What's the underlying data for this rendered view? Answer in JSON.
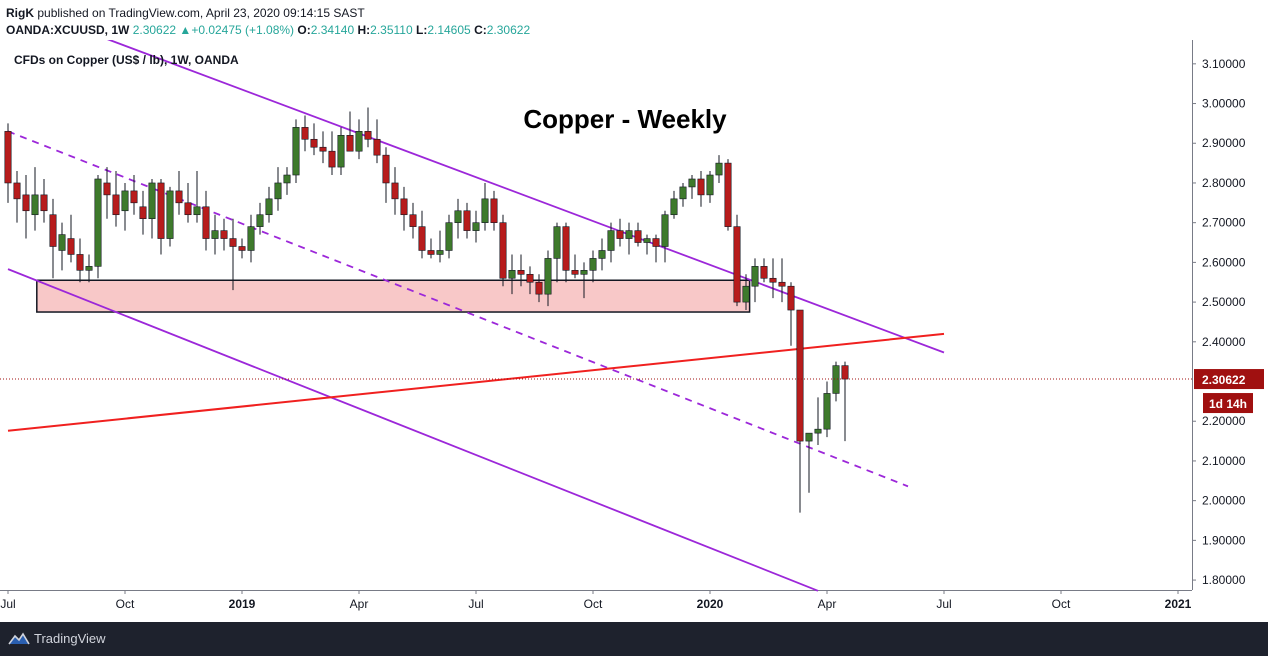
{
  "header": {
    "author": "RigK",
    "published_text": "published on TradingView.com, April 23, 2020 09:14:15 SAST",
    "symbol": "OANDA:XCUUSD, 1W",
    "last": "2.30622",
    "change_arrow": "▲",
    "change": "+0.02475 (+1.08%)",
    "open_label": "O:",
    "open_value": "2.34140",
    "high_label": "H:",
    "high_value": "2.35110",
    "low_label": "L:",
    "low_value": "2.14605",
    "close_label": "C:",
    "close_value": "2.30622"
  },
  "footer": {
    "brand": "TradingView",
    "logo_icon": "tradingview-logo-icon"
  },
  "colors": {
    "up": "#3e7a2c",
    "down": "#b71c1c",
    "wick": "#131722",
    "channel": "#9c27d9",
    "trendline": "#f0201f",
    "zone_fill": "#f8c8c8",
    "zone_border": "#131722",
    "price_badge": "#a01010"
  },
  "chart_data": {
    "type": "candlestick",
    "legend": "CFDs on Copper (US$ / lb), 1W, OANDA",
    "title": "Copper - Weekly",
    "last_price_label": "2.30622",
    "countdown_label": "1d 14h",
    "ylim": [
      1.775,
      3.16
    ],
    "y_ticks": [
      "3.10000",
      "3.00000",
      "2.90000",
      "2.80000",
      "2.70000",
      "2.60000",
      "2.50000",
      "2.40000",
      "2.20000",
      "2.10000",
      "2.00000",
      "1.90000",
      "1.80000"
    ],
    "y_tick_values": [
      3.1,
      3.0,
      2.9,
      2.8,
      2.7,
      2.6,
      2.5,
      2.4,
      2.2,
      2.1,
      2.0,
      1.9,
      1.8
    ],
    "x_ticks": [
      "Jul",
      "Oct",
      "2019",
      "Apr",
      "Jul",
      "Oct",
      "2020",
      "Apr",
      "Jul",
      "Oct",
      "2021"
    ],
    "x_tick_weeks": [
      0,
      13,
      26,
      39,
      52,
      65,
      78,
      91,
      104,
      117,
      130
    ],
    "x_tick_bold": [
      false,
      false,
      true,
      false,
      false,
      false,
      true,
      false,
      false,
      false,
      true
    ],
    "candles": [
      {
        "o": 2.93,
        "h": 2.95,
        "l": 2.75,
        "c": 2.8
      },
      {
        "o": 2.8,
        "h": 2.83,
        "l": 2.7,
        "c": 2.76
      },
      {
        "o": 2.77,
        "h": 2.82,
        "l": 2.66,
        "c": 2.73
      },
      {
        "o": 2.72,
        "h": 2.84,
        "l": 2.68,
        "c": 2.77
      },
      {
        "o": 2.77,
        "h": 2.81,
        "l": 2.7,
        "c": 2.73
      },
      {
        "o": 2.72,
        "h": 2.76,
        "l": 2.56,
        "c": 2.64
      },
      {
        "o": 2.63,
        "h": 2.7,
        "l": 2.58,
        "c": 2.67
      },
      {
        "o": 2.66,
        "h": 2.72,
        "l": 2.6,
        "c": 2.62
      },
      {
        "o": 2.62,
        "h": 2.66,
        "l": 2.55,
        "c": 2.58
      },
      {
        "o": 2.58,
        "h": 2.62,
        "l": 2.55,
        "c": 2.59
      },
      {
        "o": 2.59,
        "h": 2.82,
        "l": 2.56,
        "c": 2.81
      },
      {
        "o": 2.8,
        "h": 2.84,
        "l": 2.71,
        "c": 2.77
      },
      {
        "o": 2.77,
        "h": 2.83,
        "l": 2.69,
        "c": 2.72
      },
      {
        "o": 2.73,
        "h": 2.8,
        "l": 2.68,
        "c": 2.78
      },
      {
        "o": 2.78,
        "h": 2.82,
        "l": 2.72,
        "c": 2.75
      },
      {
        "o": 2.74,
        "h": 2.78,
        "l": 2.67,
        "c": 2.71
      },
      {
        "o": 2.71,
        "h": 2.81,
        "l": 2.66,
        "c": 2.8
      },
      {
        "o": 2.8,
        "h": 2.81,
        "l": 2.62,
        "c": 2.66
      },
      {
        "o": 2.66,
        "h": 2.79,
        "l": 2.64,
        "c": 2.78
      },
      {
        "o": 2.78,
        "h": 2.83,
        "l": 2.72,
        "c": 2.75
      },
      {
        "o": 2.75,
        "h": 2.8,
        "l": 2.7,
        "c": 2.72
      },
      {
        "o": 2.72,
        "h": 2.83,
        "l": 2.7,
        "c": 2.74
      },
      {
        "o": 2.74,
        "h": 2.78,
        "l": 2.63,
        "c": 2.66
      },
      {
        "o": 2.66,
        "h": 2.72,
        "l": 2.62,
        "c": 2.68
      },
      {
        "o": 2.68,
        "h": 2.71,
        "l": 2.63,
        "c": 2.66
      },
      {
        "o": 2.66,
        "h": 2.71,
        "l": 2.53,
        "c": 2.64
      },
      {
        "o": 2.64,
        "h": 2.66,
        "l": 2.61,
        "c": 2.63
      },
      {
        "o": 2.63,
        "h": 2.72,
        "l": 2.6,
        "c": 2.69
      },
      {
        "o": 2.69,
        "h": 2.75,
        "l": 2.67,
        "c": 2.72
      },
      {
        "o": 2.72,
        "h": 2.79,
        "l": 2.7,
        "c": 2.76
      },
      {
        "o": 2.76,
        "h": 2.84,
        "l": 2.73,
        "c": 2.8
      },
      {
        "o": 2.8,
        "h": 2.84,
        "l": 2.77,
        "c": 2.82
      },
      {
        "o": 2.82,
        "h": 2.96,
        "l": 2.8,
        "c": 2.94
      },
      {
        "o": 2.94,
        "h": 2.97,
        "l": 2.88,
        "c": 2.91
      },
      {
        "o": 2.91,
        "h": 2.95,
        "l": 2.87,
        "c": 2.89
      },
      {
        "o": 2.89,
        "h": 2.93,
        "l": 2.85,
        "c": 2.88
      },
      {
        "o": 2.88,
        "h": 2.93,
        "l": 2.82,
        "c": 2.84
      },
      {
        "o": 2.84,
        "h": 2.94,
        "l": 2.82,
        "c": 2.92
      },
      {
        "o": 2.92,
        "h": 2.98,
        "l": 2.88,
        "c": 2.88
      },
      {
        "o": 2.88,
        "h": 2.96,
        "l": 2.86,
        "c": 2.93
      },
      {
        "o": 2.93,
        "h": 2.99,
        "l": 2.89,
        "c": 2.91
      },
      {
        "o": 2.91,
        "h": 2.96,
        "l": 2.85,
        "c": 2.87
      },
      {
        "o": 2.87,
        "h": 2.89,
        "l": 2.75,
        "c": 2.8
      },
      {
        "o": 2.8,
        "h": 2.84,
        "l": 2.72,
        "c": 2.76
      },
      {
        "o": 2.76,
        "h": 2.79,
        "l": 2.68,
        "c": 2.72
      },
      {
        "o": 2.72,
        "h": 2.75,
        "l": 2.66,
        "c": 2.69
      },
      {
        "o": 2.69,
        "h": 2.73,
        "l": 2.61,
        "c": 2.63
      },
      {
        "o": 2.63,
        "h": 2.66,
        "l": 2.61,
        "c": 2.62
      },
      {
        "o": 2.62,
        "h": 2.68,
        "l": 2.6,
        "c": 2.63
      },
      {
        "o": 2.63,
        "h": 2.72,
        "l": 2.61,
        "c": 2.7
      },
      {
        "o": 2.7,
        "h": 2.76,
        "l": 2.66,
        "c": 2.73
      },
      {
        "o": 2.73,
        "h": 2.75,
        "l": 2.66,
        "c": 2.68
      },
      {
        "o": 2.68,
        "h": 2.73,
        "l": 2.65,
        "c": 2.7
      },
      {
        "o": 2.7,
        "h": 2.8,
        "l": 2.68,
        "c": 2.76
      },
      {
        "o": 2.76,
        "h": 2.78,
        "l": 2.68,
        "c": 2.7
      },
      {
        "o": 2.7,
        "h": 2.72,
        "l": 2.54,
        "c": 2.56
      },
      {
        "o": 2.56,
        "h": 2.62,
        "l": 2.52,
        "c": 2.58
      },
      {
        "o": 2.58,
        "h": 2.62,
        "l": 2.54,
        "c": 2.57
      },
      {
        "o": 2.57,
        "h": 2.59,
        "l": 2.52,
        "c": 2.55
      },
      {
        "o": 2.55,
        "h": 2.57,
        "l": 2.5,
        "c": 2.52
      },
      {
        "o": 2.52,
        "h": 2.63,
        "l": 2.49,
        "c": 2.61
      },
      {
        "o": 2.61,
        "h": 2.7,
        "l": 2.55,
        "c": 2.69
      },
      {
        "o": 2.69,
        "h": 2.7,
        "l": 2.55,
        "c": 2.58
      },
      {
        "o": 2.58,
        "h": 2.62,
        "l": 2.56,
        "c": 2.57
      },
      {
        "o": 2.57,
        "h": 2.6,
        "l": 2.51,
        "c": 2.58
      },
      {
        "o": 2.58,
        "h": 2.63,
        "l": 2.55,
        "c": 2.61
      },
      {
        "o": 2.61,
        "h": 2.66,
        "l": 2.58,
        "c": 2.63
      },
      {
        "o": 2.63,
        "h": 2.7,
        "l": 2.6,
        "c": 2.68
      },
      {
        "o": 2.68,
        "h": 2.71,
        "l": 2.64,
        "c": 2.66
      },
      {
        "o": 2.66,
        "h": 2.7,
        "l": 2.62,
        "c": 2.68
      },
      {
        "o": 2.68,
        "h": 2.7,
        "l": 2.64,
        "c": 2.65
      },
      {
        "o": 2.65,
        "h": 2.67,
        "l": 2.62,
        "c": 2.66
      },
      {
        "o": 2.66,
        "h": 2.67,
        "l": 2.6,
        "c": 2.64
      },
      {
        "o": 2.64,
        "h": 2.73,
        "l": 2.6,
        "c": 2.72
      },
      {
        "o": 2.72,
        "h": 2.78,
        "l": 2.71,
        "c": 2.76
      },
      {
        "o": 2.76,
        "h": 2.8,
        "l": 2.74,
        "c": 2.79
      },
      {
        "o": 2.79,
        "h": 2.82,
        "l": 2.76,
        "c": 2.81
      },
      {
        "o": 2.81,
        "h": 2.83,
        "l": 2.74,
        "c": 2.77
      },
      {
        "o": 2.77,
        "h": 2.83,
        "l": 2.75,
        "c": 2.82
      },
      {
        "o": 2.82,
        "h": 2.87,
        "l": 2.8,
        "c": 2.85
      },
      {
        "o": 2.85,
        "h": 2.86,
        "l": 2.68,
        "c": 2.69
      },
      {
        "o": 2.69,
        "h": 2.72,
        "l": 2.49,
        "c": 2.5
      },
      {
        "o": 2.5,
        "h": 2.57,
        "l": 2.48,
        "c": 2.54
      },
      {
        "o": 2.54,
        "h": 2.61,
        "l": 2.5,
        "c": 2.59
      },
      {
        "o": 2.59,
        "h": 2.61,
        "l": 2.55,
        "c": 2.56
      },
      {
        "o": 2.56,
        "h": 2.61,
        "l": 2.51,
        "c": 2.55
      },
      {
        "o": 2.55,
        "h": 2.61,
        "l": 2.5,
        "c": 2.54
      },
      {
        "o": 2.54,
        "h": 2.55,
        "l": 2.39,
        "c": 2.48
      },
      {
        "o": 2.48,
        "h": 2.48,
        "l": 1.97,
        "c": 2.15
      },
      {
        "o": 2.15,
        "h": 2.17,
        "l": 2.02,
        "c": 2.17
      },
      {
        "o": 2.17,
        "h": 2.26,
        "l": 2.14,
        "c": 2.18
      },
      {
        "o": 2.18,
        "h": 2.3,
        "l": 2.16,
        "c": 2.27
      },
      {
        "o": 2.27,
        "h": 2.35,
        "l": 2.25,
        "c": 2.34
      },
      {
        "o": 2.34,
        "h": 2.35,
        "l": 2.15,
        "c": 2.30622
      }
    ],
    "zone": {
      "week_start": 3.2,
      "week_end": 82.4,
      "y_high": 2.555,
      "y_low": 2.475
    },
    "lines": [
      {
        "name": "channel-upper",
        "style": "solid",
        "w1": 8,
        "y1": 3.188,
        "w2": 104,
        "y2": 2.373
      },
      {
        "name": "channel-mid",
        "style": "dashed",
        "w1": 0,
        "y1": 2.93,
        "w2": 100,
        "y2": 2.036
      },
      {
        "name": "channel-lower",
        "style": "solid",
        "w1": 0,
        "y1": 2.583,
        "w2": 90,
        "y2": 1.773
      },
      {
        "name": "rising-trendline",
        "style": "solid",
        "w1": 0,
        "y1": 2.176,
        "w2": 104,
        "y2": 2.42
      }
    ]
  }
}
